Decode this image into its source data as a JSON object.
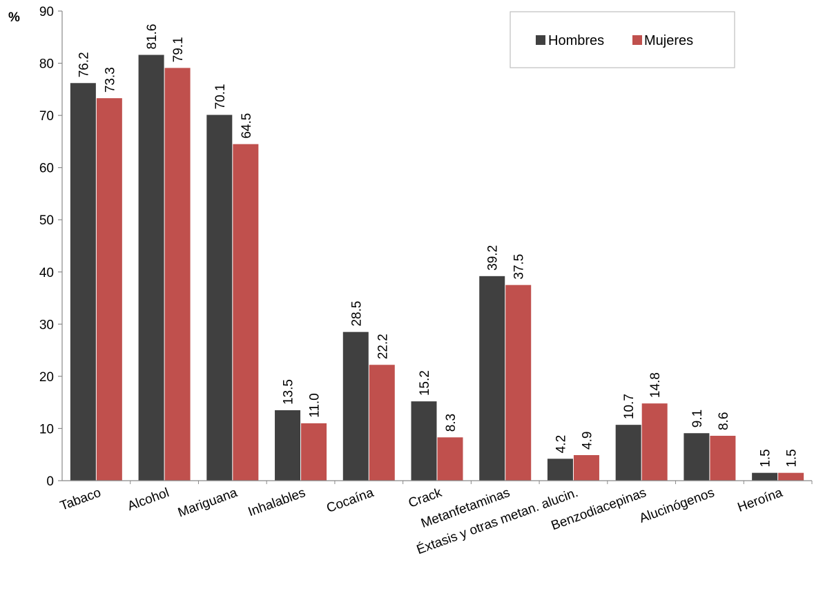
{
  "chart_data": {
    "type": "bar",
    "ylabel": "%",
    "ylim": [
      0,
      90
    ],
    "yticks": [
      0,
      10,
      20,
      30,
      40,
      50,
      60,
      70,
      80,
      90
    ],
    "grid": false,
    "legend_position": "top-right",
    "categories": [
      "Tabaco",
      "Alcohol",
      "Mariguana",
      "Inhalables",
      "Cocaína",
      "Crack",
      "Metanfetaminas",
      "Éxtasis y otras metan. alucin.",
      "Benzodiacepinas",
      "Alucinógenos",
      "Heroína"
    ],
    "series": [
      {
        "name": "Hombres",
        "color": "#404040",
        "values": [
          76.2,
          81.6,
          70.1,
          13.5,
          28.5,
          15.2,
          39.2,
          4.2,
          10.7,
          9.1,
          1.5
        ]
      },
      {
        "name": "Mujeres",
        "color": "#C0504D",
        "values": [
          73.3,
          79.1,
          64.5,
          11.0,
          22.2,
          8.3,
          37.5,
          4.9,
          14.8,
          8.6,
          1.5
        ]
      }
    ]
  }
}
